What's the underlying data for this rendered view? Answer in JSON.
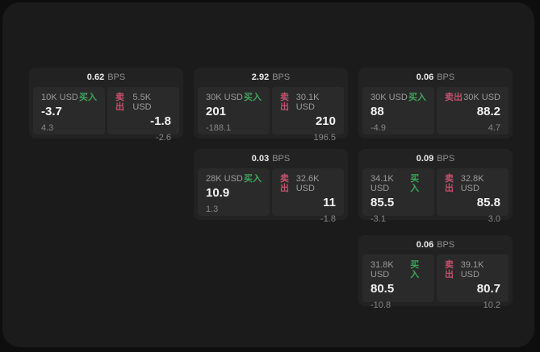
{
  "page": {
    "background": "#0e0e0e",
    "window_background": "#1b1b1b"
  },
  "labels": {
    "buy": "买入",
    "sell": "卖出",
    "bps": "BPS"
  },
  "colors": {
    "buy": "#3fa45c",
    "sell": "#c4506b",
    "card": "#222222",
    "panel": "#2a2a2a"
  },
  "cards": [
    {
      "bps": "0.62",
      "buy": {
        "amount": "10K USD",
        "price": "-3.7",
        "delta": "4.3"
      },
      "sell": {
        "amount": "5.5K USD",
        "price": "-1.8",
        "delta": "-2.6"
      }
    },
    {
      "bps": "2.92",
      "buy": {
        "amount": "30K USD",
        "price": "201",
        "delta": "-188.1"
      },
      "sell": {
        "amount": "30.1K USD",
        "price": "210",
        "delta": "196.5"
      }
    },
    {
      "bps": "0.06",
      "buy": {
        "amount": "30K USD",
        "price": "88",
        "delta": "-4.9"
      },
      "sell": {
        "amount": "30K USD",
        "price": "88.2",
        "delta": "4.7"
      }
    },
    {
      "bps": "0.03",
      "buy": {
        "amount": "28K USD",
        "price": "10.9",
        "delta": "1.3"
      },
      "sell": {
        "amount": "32.6K USD",
        "price": "11",
        "delta": "-1.8"
      }
    },
    {
      "bps": "0.09",
      "buy": {
        "amount": "34.1K USD",
        "price": "85.5",
        "delta": "-3.1"
      },
      "sell": {
        "amount": "32.8K USD",
        "price": "85.8",
        "delta": "3.0"
      }
    },
    {
      "bps": "0.06",
      "buy": {
        "amount": "31.8K USD",
        "price": "80.5",
        "delta": "-10.8"
      },
      "sell": {
        "amount": "39.1K USD",
        "price": "80.7",
        "delta": "10.2"
      }
    }
  ]
}
